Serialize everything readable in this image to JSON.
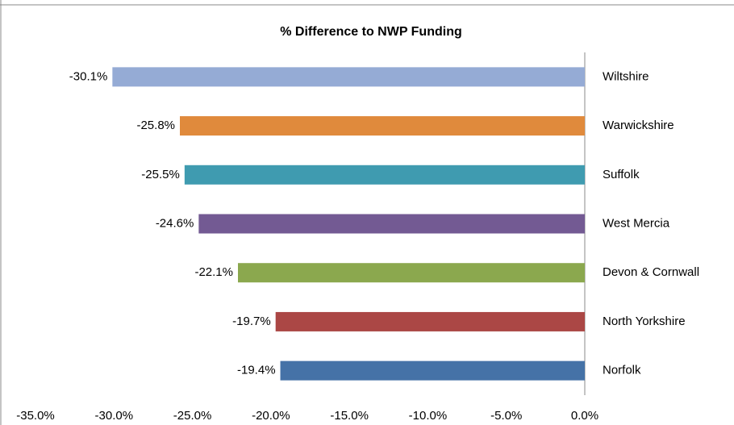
{
  "chart_data": {
    "type": "bar",
    "orientation": "horizontal",
    "title": "% Difference to NWP Funding",
    "categories": [
      "Wiltshire",
      "Warwickshire",
      "Suffolk",
      "West Mercia",
      "Devon & Cornwall",
      "North Yorkshire",
      "Norfolk"
    ],
    "values": [
      -30.1,
      -25.8,
      -25.5,
      -24.6,
      -22.1,
      -19.7,
      -19.4
    ],
    "value_labels": [
      "-30.1%",
      "-25.8%",
      "-25.5%",
      "-24.6%",
      "-22.1%",
      "-19.7%",
      "-19.4%"
    ],
    "colors": [
      "#95abd5",
      "#e08a3c",
      "#3f9bb0",
      "#735a93",
      "#8ba84e",
      "#ab4745",
      "#4572a7"
    ],
    "xlim": [
      -35,
      0
    ],
    "xticks": [
      {
        "value": -35,
        "label": "-35.0%"
      },
      {
        "value": -30,
        "label": "-30.0%"
      },
      {
        "value": -25,
        "label": "-25.0%"
      },
      {
        "value": -20,
        "label": "-20.0%"
      },
      {
        "value": -15,
        "label": "-15.0%"
      },
      {
        "value": -10,
        "label": "-10.0%"
      },
      {
        "value": -5,
        "label": "-5.0%"
      },
      {
        "value": 0,
        "label": "0.0%"
      }
    ],
    "grid": false
  }
}
